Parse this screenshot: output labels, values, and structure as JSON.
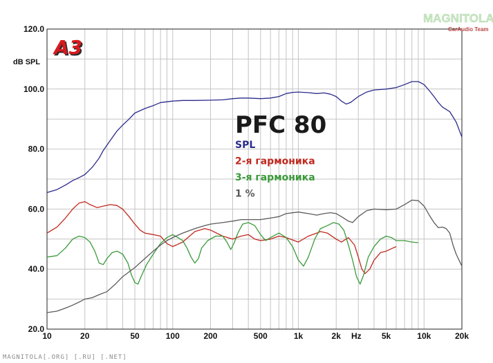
{
  "chart_data": {
    "type": "line",
    "title": "PFC 80",
    "ylabel": "dB SPL",
    "xscale": "log",
    "xlim": [
      10,
      20000
    ],
    "ylim": [
      20,
      120
    ],
    "xticks": [
      {
        "value": 10,
        "label": "10"
      },
      {
        "value": 20,
        "label": "20"
      },
      {
        "value": 50,
        "label": "50"
      },
      {
        "value": 100,
        "label": "100"
      },
      {
        "value": 200,
        "label": "200"
      },
      {
        "value": 500,
        "label": "500"
      },
      {
        "value": 1000,
        "label": "1k"
      },
      {
        "value": 2000,
        "label": "2k"
      },
      {
        "value": 5000,
        "label": "5k"
      },
      {
        "value": 10000,
        "label": "10k"
      },
      {
        "value": 20000,
        "label": "20k"
      }
    ],
    "x_unit_label": "Hz",
    "yticks": [
      {
        "value": 20,
        "label": "20.0"
      },
      {
        "value": 40,
        "label": "40.0"
      },
      {
        "value": 60,
        "label": "60.0"
      },
      {
        "value": 80,
        "label": "80.0"
      },
      {
        "value": 100,
        "label": "100.0"
      },
      {
        "value": 120,
        "label": "120.0"
      }
    ],
    "grid": true,
    "series": [
      {
        "name": "SPL",
        "color": "#2a2a8c",
        "points": [
          [
            10,
            65.5
          ],
          [
            12,
            66.5
          ],
          [
            14,
            68
          ],
          [
            16,
            69.5
          ],
          [
            18,
            70.5
          ],
          [
            20,
            71.5
          ],
          [
            23,
            74
          ],
          [
            26,
            77
          ],
          [
            28,
            79.5
          ],
          [
            32,
            83
          ],
          [
            36,
            86
          ],
          [
            40,
            88
          ],
          [
            45,
            90
          ],
          [
            50,
            92
          ],
          [
            60,
            93.5
          ],
          [
            70,
            94.5
          ],
          [
            80,
            95.5
          ],
          [
            100,
            96
          ],
          [
            120,
            96.2
          ],
          [
            150,
            96.2
          ],
          [
            200,
            96.3
          ],
          [
            250,
            96.4
          ],
          [
            300,
            96.8
          ],
          [
            350,
            97
          ],
          [
            400,
            97
          ],
          [
            500,
            96.8
          ],
          [
            600,
            97
          ],
          [
            700,
            97.5
          ],
          [
            800,
            98.5
          ],
          [
            900,
            98.9
          ],
          [
            1000,
            99
          ],
          [
            1200,
            98.8
          ],
          [
            1400,
            98.5
          ],
          [
            1600,
            98.7
          ],
          [
            1800,
            98.3
          ],
          [
            2000,
            97.5
          ],
          [
            2200,
            96
          ],
          [
            2400,
            95
          ],
          [
            2600,
            95.5
          ],
          [
            3000,
            97.5
          ],
          [
            3500,
            99
          ],
          [
            4000,
            99.7
          ],
          [
            5000,
            100
          ],
          [
            6000,
            100.5
          ],
          [
            7000,
            101.5
          ],
          [
            8000,
            102.5
          ],
          [
            9000,
            102.5
          ],
          [
            10000,
            101.5
          ],
          [
            11000,
            99.5
          ],
          [
            12000,
            97.5
          ],
          [
            13000,
            95.5
          ],
          [
            14000,
            94
          ],
          [
            16000,
            92.5
          ],
          [
            18000,
            89
          ],
          [
            20000,
            84
          ]
        ]
      },
      {
        "name": "2-я гармоника",
        "color": "#c0281e",
        "points": [
          [
            10,
            52
          ],
          [
            12,
            54
          ],
          [
            14,
            57
          ],
          [
            16,
            60
          ],
          [
            18,
            62
          ],
          [
            20,
            62.5
          ],
          [
            22,
            61.5
          ],
          [
            25,
            60.5
          ],
          [
            28,
            61
          ],
          [
            32,
            61.5
          ],
          [
            36,
            61.2
          ],
          [
            40,
            60
          ],
          [
            45,
            57.5
          ],
          [
            50,
            55
          ],
          [
            55,
            53
          ],
          [
            60,
            52
          ],
          [
            70,
            51.5
          ],
          [
            80,
            51
          ],
          [
            90,
            48.5
          ],
          [
            100,
            47.5
          ],
          [
            120,
            49
          ],
          [
            150,
            52.5
          ],
          [
            180,
            53.5
          ],
          [
            200,
            53
          ],
          [
            250,
            51
          ],
          [
            300,
            50
          ],
          [
            350,
            51
          ],
          [
            400,
            51.5
          ],
          [
            450,
            50
          ],
          [
            500,
            49.5
          ],
          [
            600,
            50
          ],
          [
            700,
            51
          ],
          [
            800,
            50.5
          ],
          [
            1000,
            49
          ],
          [
            1200,
            51
          ],
          [
            1400,
            52
          ],
          [
            1500,
            52.5
          ],
          [
            1700,
            52
          ],
          [
            2000,
            50
          ],
          [
            2200,
            49
          ],
          [
            2500,
            50.5
          ],
          [
            2800,
            48
          ],
          [
            3000,
            44
          ],
          [
            3200,
            40
          ],
          [
            3400,
            38.5
          ],
          [
            3700,
            40
          ],
          [
            4000,
            43
          ],
          [
            4500,
            45.5
          ],
          [
            5000,
            46
          ],
          [
            5500,
            46.8
          ],
          [
            6000,
            47.5
          ]
        ]
      },
      {
        "name": "3-я гармоника",
        "color": "#3a9a3a",
        "points": [
          [
            10,
            44
          ],
          [
            12,
            44.5
          ],
          [
            14,
            47
          ],
          [
            16,
            50
          ],
          [
            18,
            51
          ],
          [
            20,
            50.5
          ],
          [
            22,
            49
          ],
          [
            24,
            46
          ],
          [
            26,
            42
          ],
          [
            28,
            41.5
          ],
          [
            30,
            43.5
          ],
          [
            33,
            45.5
          ],
          [
            36,
            46
          ],
          [
            40,
            45
          ],
          [
            44,
            42
          ],
          [
            47,
            38
          ],
          [
            50,
            35.5
          ],
          [
            53,
            35
          ],
          [
            56,
            37.5
          ],
          [
            62,
            41.5
          ],
          [
            70,
            45
          ],
          [
            80,
            48.5
          ],
          [
            90,
            50.5
          ],
          [
            100,
            51.5
          ],
          [
            110,
            50.5
          ],
          [
            120,
            49.5
          ],
          [
            130,
            47
          ],
          [
            140,
            44
          ],
          [
            150,
            42
          ],
          [
            160,
            43.5
          ],
          [
            170,
            47
          ],
          [
            190,
            49.5
          ],
          [
            220,
            51
          ],
          [
            250,
            51
          ],
          [
            270,
            49
          ],
          [
            290,
            46.5
          ],
          [
            310,
            49
          ],
          [
            330,
            52
          ],
          [
            360,
            55
          ],
          [
            400,
            55.5
          ],
          [
            450,
            54.5
          ],
          [
            500,
            51.5
          ],
          [
            550,
            49.5
          ],
          [
            600,
            50.5
          ],
          [
            700,
            52
          ],
          [
            800,
            50.5
          ],
          [
            900,
            47.5
          ],
          [
            1000,
            43
          ],
          [
            1100,
            41
          ],
          [
            1200,
            44
          ],
          [
            1350,
            50
          ],
          [
            1500,
            53.5
          ],
          [
            1700,
            54.5
          ],
          [
            1900,
            55.5
          ],
          [
            2100,
            55
          ],
          [
            2300,
            53
          ],
          [
            2500,
            48
          ],
          [
            2700,
            43
          ],
          [
            2900,
            37.5
          ],
          [
            3100,
            35
          ],
          [
            3300,
            38
          ],
          [
            3600,
            44
          ],
          [
            4000,
            47.5
          ],
          [
            4500,
            50
          ],
          [
            5000,
            51
          ],
          [
            5500,
            50.5
          ],
          [
            6000,
            49.5
          ],
          [
            7000,
            49.5
          ],
          [
            8000,
            49
          ],
          [
            9000,
            48.8
          ]
        ]
      },
      {
        "name": "1 %",
        "color": "#5a5a5a",
        "points": [
          [
            10,
            25.5
          ],
          [
            12,
            26
          ],
          [
            14,
            27
          ],
          [
            16,
            28
          ],
          [
            18,
            29
          ],
          [
            20,
            30
          ],
          [
            23,
            30.5
          ],
          [
            26,
            31.5
          ],
          [
            30,
            32.5
          ],
          [
            35,
            35
          ],
          [
            40,
            37.5
          ],
          [
            50,
            40.5
          ],
          [
            60,
            43.5
          ],
          [
            70,
            46
          ],
          [
            80,
            48
          ],
          [
            90,
            49.5
          ],
          [
            100,
            50.5
          ],
          [
            120,
            52
          ],
          [
            150,
            53.5
          ],
          [
            180,
            54.5
          ],
          [
            200,
            55
          ],
          [
            250,
            55.5
          ],
          [
            300,
            56
          ],
          [
            350,
            56.5
          ],
          [
            400,
            56.5
          ],
          [
            500,
            56.5
          ],
          [
            600,
            57
          ],
          [
            700,
            57.5
          ],
          [
            800,
            58.5
          ],
          [
            1000,
            59
          ],
          [
            1200,
            58.5
          ],
          [
            1400,
            58
          ],
          [
            1600,
            58.5
          ],
          [
            1800,
            58.8
          ],
          [
            2000,
            58.5
          ],
          [
            2200,
            57.5
          ],
          [
            2500,
            56
          ],
          [
            2700,
            55.5
          ],
          [
            3000,
            57.5
          ],
          [
            3500,
            59.5
          ],
          [
            4000,
            60
          ],
          [
            5000,
            59.8
          ],
          [
            6000,
            60
          ],
          [
            7000,
            61.5
          ],
          [
            8000,
            63
          ],
          [
            9000,
            62.8
          ],
          [
            10000,
            61
          ],
          [
            11000,
            58
          ],
          [
            12000,
            55.5
          ],
          [
            13000,
            53.8
          ],
          [
            14000,
            54
          ],
          [
            15000,
            53.5
          ],
          [
            16000,
            52
          ],
          [
            17000,
            48
          ],
          [
            18000,
            45
          ],
          [
            20000,
            41
          ]
        ]
      }
    ]
  },
  "badge": {
    "label": "A3",
    "color": "#d8191f"
  },
  "watermark": {
    "title": "MAGNITOLA",
    "subtitle": "CarAudio Team"
  },
  "footer": {
    "text": "MAGNITOLA[.ORG] [.RU] [.NET]"
  }
}
